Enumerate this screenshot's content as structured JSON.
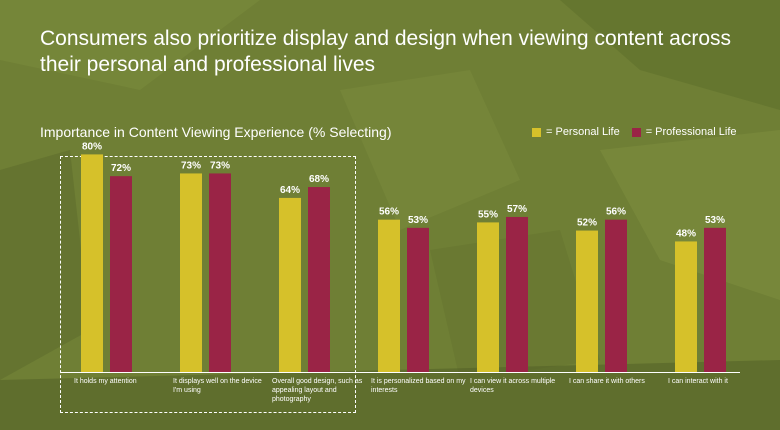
{
  "headline": "Consumers also prioritize display and design when viewing content across their personal and professional lives",
  "colors": {
    "personal": "#d6c12a",
    "professional": "#9a2446",
    "background": "#6f7f35",
    "text": "#ffffff"
  },
  "legend": {
    "personal_label": "= Personal Life",
    "professional_label": "= Professional Life"
  },
  "chart_data": {
    "type": "bar",
    "title": "Importance in Content Viewing Experience (% Selecting)",
    "categories": [
      "It holds my attention",
      "It displays well on the device I'm using",
      "Overall good design, such as appealing layout and photography",
      "It is personalized based on my interests",
      "I can view it across multiple devices",
      "I can share it with others",
      "I can interact with it"
    ],
    "series": [
      {
        "name": "Personal Life",
        "values": [
          80,
          73,
          64,
          56,
          55,
          52,
          48
        ]
      },
      {
        "name": "Professional Life",
        "values": [
          72,
          73,
          68,
          53,
          57,
          56,
          53
        ]
      }
    ],
    "value_suffix": "%",
    "ylim": [
      0,
      100
    ],
    "grid": false,
    "legend_position": "top-right",
    "highlighted_categories": [
      0,
      1,
      2
    ]
  }
}
